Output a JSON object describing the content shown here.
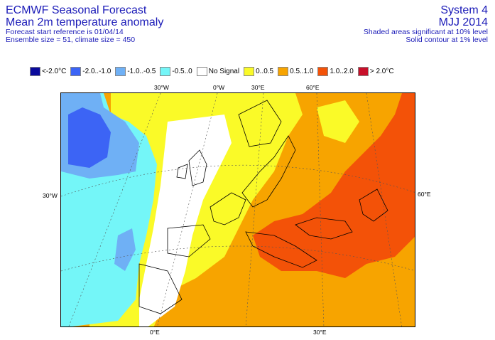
{
  "header": {
    "left": {
      "line1": "ECMWF Seasonal Forecast",
      "line2": "Mean 2m temperature anomaly",
      "line3": "Forecast start reference is 01/04/14",
      "line4": "Ensemble size = 51, climate size = 450"
    },
    "right": {
      "line1": "System 4",
      "line2": "MJJ 2014",
      "line3": "Shaded areas significant at 10% level",
      "line4": "Solid contour at 1% level"
    }
  },
  "legend": [
    {
      "label": "<-2.0°C",
      "color": "#0a0a9c"
    },
    {
      "label": "-2.0..-1.0",
      "color": "#3c64f5"
    },
    {
      "label": "-1.0..-0.5",
      "color": "#6fb0f5"
    },
    {
      "label": "-0.5..0",
      "color": "#74f6f8"
    },
    {
      "label": "No Signal",
      "color": "#ffffff"
    },
    {
      "label": "0..0.5",
      "color": "#fafa28"
    },
    {
      "label": "0.5..1.0",
      "color": "#f7a400"
    },
    {
      "label": "1.0..2.0",
      "color": "#f35208"
    },
    {
      "label": "> 2.0°C",
      "color": "#c8102a"
    }
  ],
  "map": {
    "top_labels": [
      "30°W",
      "0°W",
      "30°E",
      "60°E"
    ],
    "left_label": "30°W",
    "right_label": "60°E",
    "bottom_labels": [
      "0°E",
      "30°E"
    ]
  }
}
